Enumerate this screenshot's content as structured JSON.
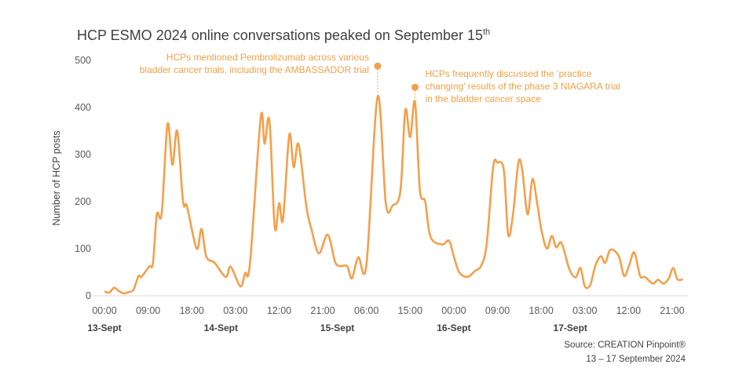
{
  "chart_data": {
    "type": "line",
    "title": "HCP ESMO 2024 online conversations peaked on September 15",
    "title_superscript": "th",
    "xlabel": "",
    "ylabel": "Number of HCP posts",
    "ylim": [
      0,
      500
    ],
    "yticks": [
      0,
      100,
      200,
      300,
      400,
      500
    ],
    "x_unit": "hours since 00:00 13-Sept",
    "xlim": [
      0,
      117
    ],
    "xticks": [
      {
        "h": 0,
        "label": "00:00"
      },
      {
        "h": 9,
        "label": "09:00"
      },
      {
        "h": 18,
        "label": "18:00"
      },
      {
        "h": 27,
        "label": "03:00"
      },
      {
        "h": 36,
        "label": "12:00"
      },
      {
        "h": 45,
        "label": "21:00"
      },
      {
        "h": 54,
        "label": "06:00"
      },
      {
        "h": 63,
        "label": "15:00"
      },
      {
        "h": 72,
        "label": "00:00"
      },
      {
        "h": 81,
        "label": "09:00"
      },
      {
        "h": 90,
        "label": "18:00"
      },
      {
        "h": 99,
        "label": "03:00"
      },
      {
        "h": 108,
        "label": "12:00"
      },
      {
        "h": 117,
        "label": "21:00"
      }
    ],
    "date_labels": [
      {
        "h": 0,
        "label": "13-Sept"
      },
      {
        "h": 24,
        "label": "14-Sept"
      },
      {
        "h": 48,
        "label": "15-Sept"
      },
      {
        "h": 72,
        "label": "16-Sept"
      },
      {
        "h": 96,
        "label": "17-Sept"
      }
    ],
    "grid": false,
    "series": [
      {
        "name": "HCP posts",
        "color": "#F4A04B",
        "points": [
          [
            0,
            9
          ],
          [
            1,
            7
          ],
          [
            2,
            17
          ],
          [
            3,
            10
          ],
          [
            4,
            5
          ],
          [
            5,
            8
          ],
          [
            6,
            13
          ],
          [
            7,
            42
          ],
          [
            7.6,
            40
          ],
          [
            9.2,
            62
          ],
          [
            10,
            70
          ],
          [
            10.8,
            173
          ],
          [
            11.8,
            175
          ],
          [
            13,
            365
          ],
          [
            14,
            278
          ],
          [
            15,
            350
          ],
          [
            16.2,
            200
          ],
          [
            17,
            190
          ],
          [
            19,
            100
          ],
          [
            20,
            142
          ],
          [
            21,
            83
          ],
          [
            22.7,
            70
          ],
          [
            25,
            40
          ],
          [
            26,
            62
          ],
          [
            28,
            20
          ],
          [
            29,
            48
          ],
          [
            30,
            70
          ],
          [
            32.2,
            378
          ],
          [
            33,
            323
          ],
          [
            34,
            372
          ],
          [
            35.1,
            145
          ],
          [
            36,
            197
          ],
          [
            36.8,
            162
          ],
          [
            38.1,
            342
          ],
          [
            39,
            273
          ],
          [
            40,
            322
          ],
          [
            41.6,
            190
          ],
          [
            42.7,
            140
          ],
          [
            44.2,
            90
          ],
          [
            46,
            130
          ],
          [
            47.5,
            73
          ],
          [
            48.5,
            63
          ],
          [
            50,
            63
          ],
          [
            51,
            37
          ],
          [
            52.3,
            82
          ],
          [
            54,
            67
          ],
          [
            56.3,
            423
          ],
          [
            58,
            195
          ],
          [
            59.4,
            192
          ],
          [
            61,
            223
          ],
          [
            62,
            394
          ],
          [
            63,
            337
          ],
          [
            64,
            412
          ],
          [
            65,
            225
          ],
          [
            66.1,
            200
          ],
          [
            67.2,
            125
          ],
          [
            69.6,
            109
          ],
          [
            71,
            117
          ],
          [
            72,
            84
          ],
          [
            73.1,
            50
          ],
          [
            74.8,
            40
          ],
          [
            76.4,
            53
          ],
          [
            77.7,
            65
          ],
          [
            78.8,
            112
          ],
          [
            80.1,
            273
          ],
          [
            81,
            283
          ],
          [
            82.3,
            267
          ],
          [
            83.2,
            130
          ],
          [
            84.2,
            173
          ],
          [
            85.3,
            283
          ],
          [
            86.1,
            267
          ],
          [
            87.2,
            173
          ],
          [
            88.2,
            248
          ],
          [
            89.2,
            195
          ],
          [
            90.1,
            137
          ],
          [
            91.2,
            100
          ],
          [
            92.2,
            127
          ],
          [
            93.1,
            103
          ],
          [
            94.2,
            112
          ],
          [
            95.8,
            57
          ],
          [
            97.1,
            39
          ],
          [
            98.1,
            59
          ],
          [
            99,
            20
          ],
          [
            100.1,
            23
          ],
          [
            101.2,
            65
          ],
          [
            102.3,
            84
          ],
          [
            103.2,
            70
          ],
          [
            104.3,
            98
          ],
          [
            106,
            84
          ],
          [
            107.1,
            42
          ],
          [
            108.2,
            67
          ],
          [
            109.2,
            92
          ],
          [
            110.4,
            42
          ],
          [
            111.4,
            40
          ],
          [
            113,
            26
          ],
          [
            114.1,
            34
          ],
          [
            115.2,
            26
          ],
          [
            116.3,
            37
          ],
          [
            117.2,
            59
          ],
          [
            118.1,
            35
          ],
          [
            119.2,
            35
          ]
        ]
      }
    ],
    "annotations": [
      {
        "h": 56.3,
        "marker_value": 488,
        "side": "left",
        "lines": [
          "HCPs mentioned Pembrolizumab across various",
          "bladder cancer trials, including the AMBASSADOR trial"
        ]
      },
      {
        "h": 64,
        "marker_value": 443,
        "side": "right",
        "lines": [
          "HCPs frequently discussed the ‘practice",
          "changing’ results of the phase 3 NIAGARA trial",
          "in the bladder cancer space"
        ]
      }
    ],
    "source": [
      "Source: CREATION Pinpoint®",
      "13 – 17 September 2024"
    ]
  }
}
